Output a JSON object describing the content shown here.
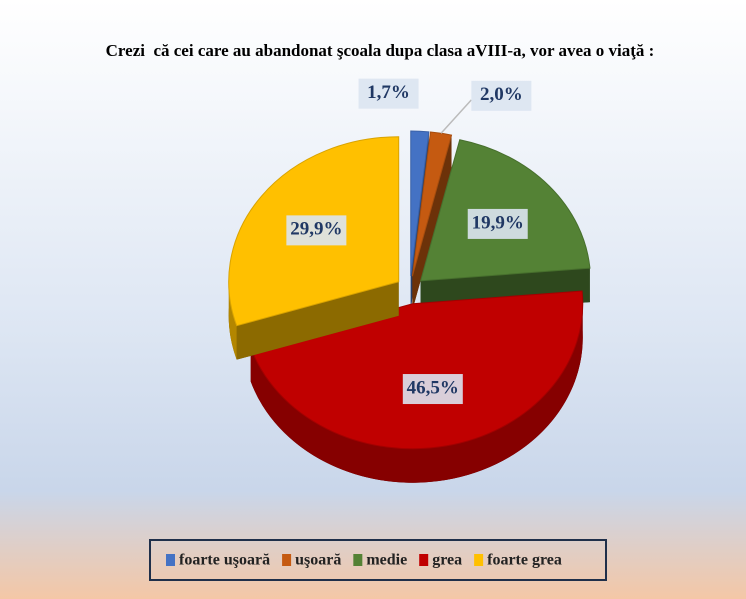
{
  "chart_data": {
    "type": "pie",
    "title": "Crezi  că cei care au abandonat şcoala dupa clasa aVIII-a, vor avea o viaţă :",
    "categories": [
      "foarte uşoară",
      "uşoară",
      "medie",
      "grea",
      "foarte grea"
    ],
    "values": [
      1.7,
      2.0,
      19.9,
      46.5,
      29.9
    ],
    "value_labels": [
      "1,7%",
      "2,0%",
      "19,9%",
      "46,5%",
      "29,9%"
    ],
    "colors": [
      "#4472c4",
      "#c55a11",
      "#548235",
      "#c00000",
      "#ffc000"
    ],
    "legend": "bottom"
  }
}
